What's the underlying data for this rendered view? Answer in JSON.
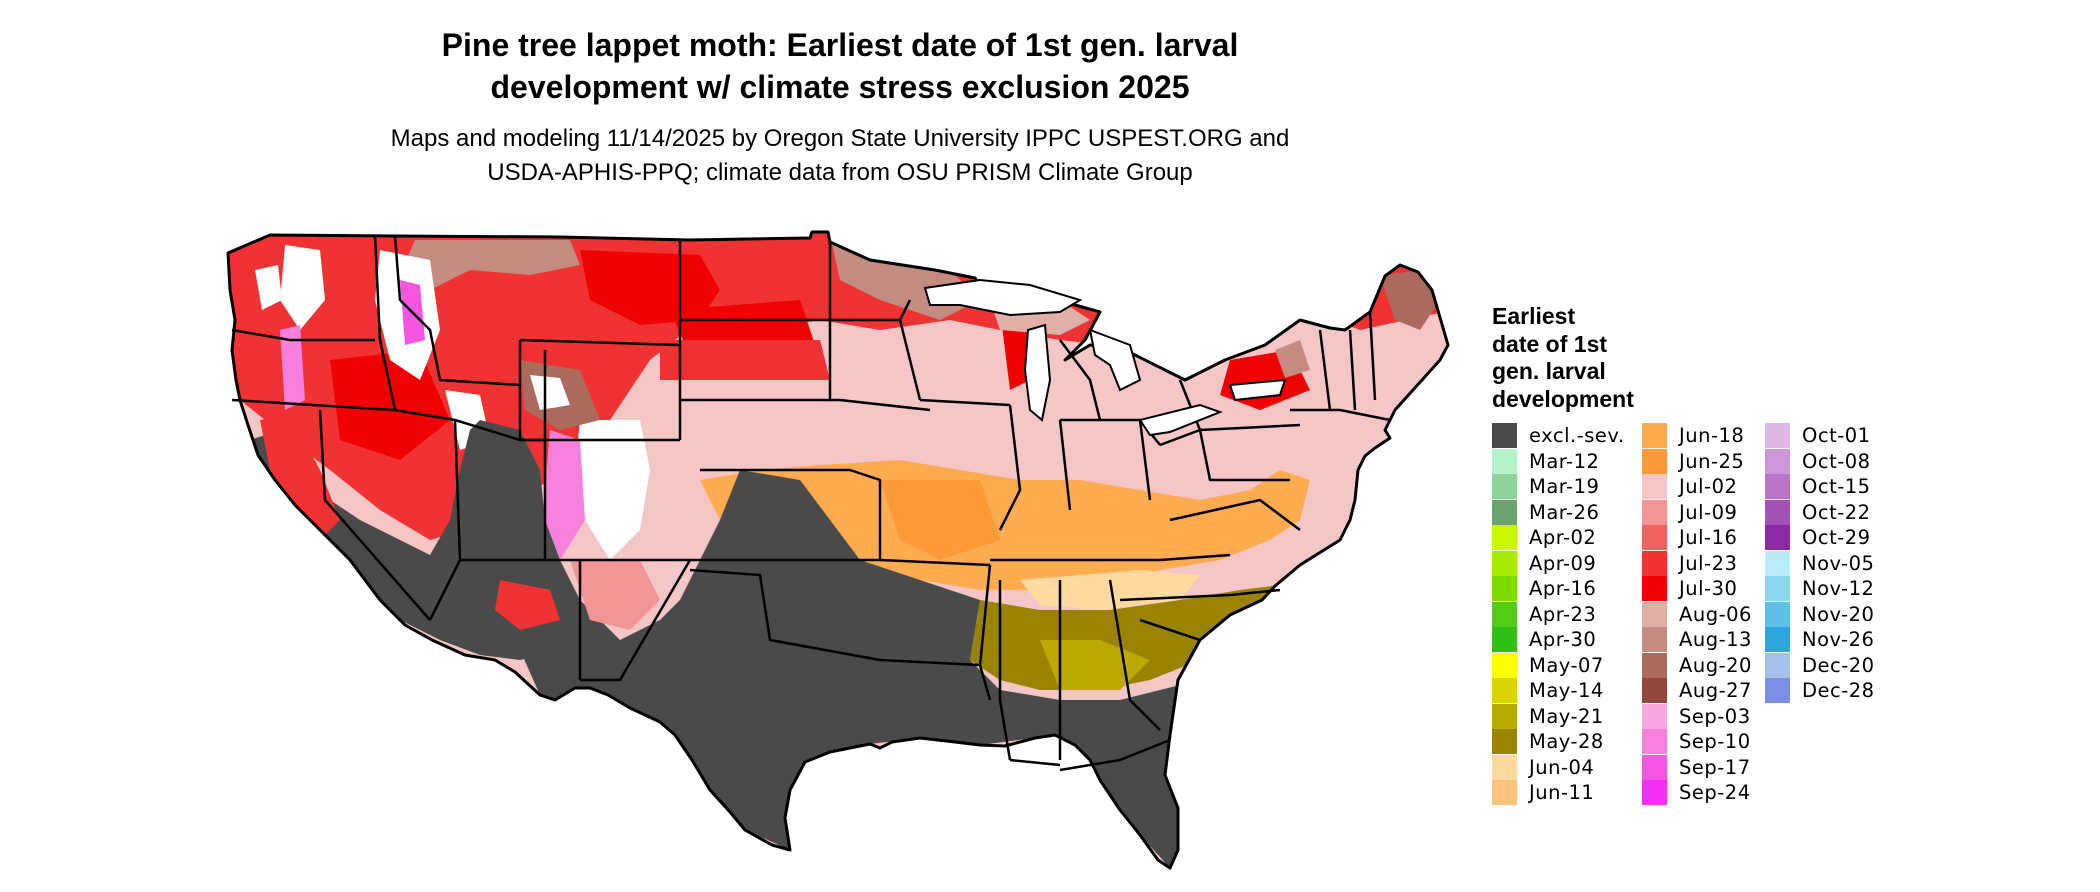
{
  "title_line1": "Pine tree lappet moth: Earliest date of 1st gen. larval",
  "title_line2": "development w/ climate stress exclusion 2025",
  "subtitle_line1": "Maps and modeling 11/14/2025 by Oregon State University IPPC USPEST.ORG and",
  "subtitle_line2": "USDA-APHIS-PPQ; climate data from OSU PRISM Climate Group",
  "legend": {
    "title_lines": [
      "Earliest",
      "date of 1st",
      "gen. larval",
      "development"
    ],
    "columns": [
      [
        {
          "label": "excl.-sev.",
          "color": "#4a4a4a"
        },
        {
          "label": "Mar-12",
          "color": "#b3f5c8"
        },
        {
          "label": "Mar-19",
          "color": "#8ed39a"
        },
        {
          "label": "Mar-26",
          "color": "#6aa56b"
        },
        {
          "label": "Apr-02",
          "color": "#c8f500"
        },
        {
          "label": "Apr-09",
          "color": "#a6eb00"
        },
        {
          "label": "Apr-16",
          "color": "#7fdc00"
        },
        {
          "label": "Apr-23",
          "color": "#52cc16"
        },
        {
          "label": "Apr-30",
          "color": "#2fbf15"
        },
        {
          "label": "May-07",
          "color": "#ffff00"
        },
        {
          "label": "May-14",
          "color": "#dcd400"
        },
        {
          "label": "May-21",
          "color": "#bba800"
        },
        {
          "label": "May-28",
          "color": "#9a8300"
        },
        {
          "label": "Jun-04",
          "color": "#ffd9a0"
        },
        {
          "label": "Jun-11",
          "color": "#ffc27a"
        }
      ],
      [
        {
          "label": "Jun-18",
          "color": "#ffab50"
        },
        {
          "label": "Jun-25",
          "color": "#ff9a38"
        },
        {
          "label": "Jul-02",
          "color": "#f5c6c6"
        },
        {
          "label": "Jul-09",
          "color": "#f49595"
        },
        {
          "label": "Jul-16",
          "color": "#f26060"
        },
        {
          "label": "Jul-23",
          "color": "#f03232"
        },
        {
          "label": "Jul-30",
          "color": "#f00000"
        },
        {
          "label": "Aug-06",
          "color": "#deb0a6"
        },
        {
          "label": "Aug-13",
          "color": "#c48c80"
        },
        {
          "label": "Aug-20",
          "color": "#ac6a5c"
        },
        {
          "label": "Aug-27",
          "color": "#93473a"
        },
        {
          "label": "Sep-03",
          "color": "#f7a8e0"
        },
        {
          "label": "Sep-10",
          "color": "#f780dc"
        },
        {
          "label": "Sep-17",
          "color": "#f755e0"
        },
        {
          "label": "Sep-24",
          "color": "#f72ef5"
        }
      ],
      [
        {
          "label": "Oct-01",
          "color": "#e0b8e8"
        },
        {
          "label": "Oct-08",
          "color": "#cc96d8"
        },
        {
          "label": "Oct-15",
          "color": "#b875c8"
        },
        {
          "label": "Oct-22",
          "color": "#a353b8"
        },
        {
          "label": "Oct-29",
          "color": "#8a2aa6"
        },
        {
          "label": "Nov-05",
          "color": "#b8ecf8"
        },
        {
          "label": "Nov-12",
          "color": "#8cd7f0"
        },
        {
          "label": "Nov-20",
          "color": "#5ec0e8"
        },
        {
          "label": "Nov-26",
          "color": "#2ca6dc"
        },
        {
          "label": "Dec-20",
          "color": "#a3c3ec"
        },
        {
          "label": "Dec-28",
          "color": "#7a90e8"
        }
      ]
    ]
  }
}
